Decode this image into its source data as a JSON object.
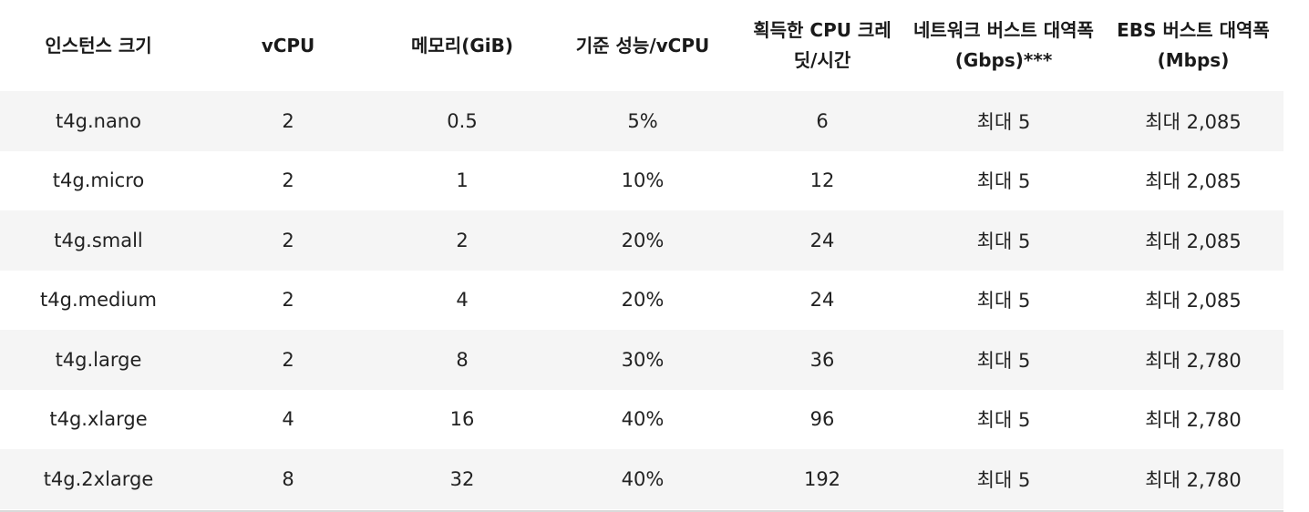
{
  "table": {
    "headers": [
      "인스턴스 크기",
      "vCPU",
      "메모리(GiB)",
      "기준 성능/vCPU",
      "획득한 CPU 크레딧/시간",
      "네트워크 버스트 대역폭(Gbps)***",
      "EBS 버스트 대역폭(Mbps)"
    ],
    "rows": [
      [
        "t4g.nano",
        "2",
        "0.5",
        "5%",
        "6",
        "최대 5",
        "최대 2,085"
      ],
      [
        "t4g.micro",
        "2",
        "1",
        "10%",
        "12",
        "최대 5",
        "최대 2,085"
      ],
      [
        "t4g.small",
        "2",
        "2",
        "20%",
        "24",
        "최대 5",
        "최대 2,085"
      ],
      [
        "t4g.medium",
        "2",
        "4",
        "20%",
        "24",
        "최대 5",
        "최대 2,085"
      ],
      [
        "t4g.large",
        "2",
        "8",
        "30%",
        "36",
        "최대 5",
        "최대 2,780"
      ],
      [
        "t4g.xlarge",
        "4",
        "16",
        "40%",
        "96",
        "최대 5",
        "최대 2,780"
      ],
      [
        "t4g.2xlarge",
        "8",
        "32",
        "40%",
        "192",
        "최대 5",
        "최대 2,780"
      ]
    ]
  },
  "colors": {
    "row_shade": "#f5f5f5",
    "text": "#222222",
    "rule": "#d9d9d9"
  }
}
